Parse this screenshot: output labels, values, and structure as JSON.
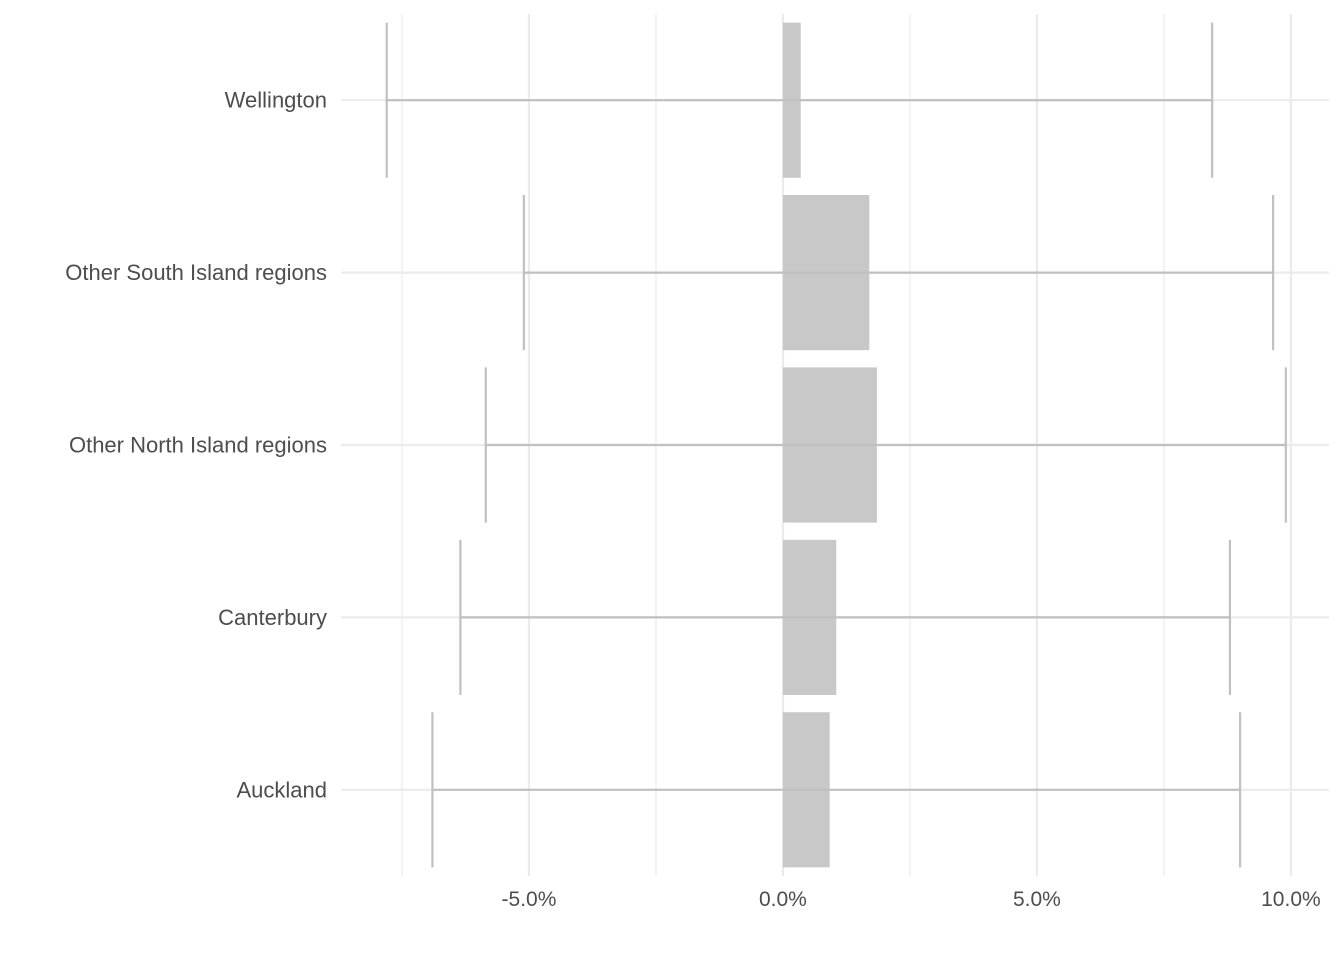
{
  "chart_data": {
    "type": "bar",
    "orientation": "horizontal",
    "categories": [
      "Wellington",
      "Other South Island regions",
      "Other North Island regions",
      "Canterbury",
      "Auckland"
    ],
    "values": [
      0.35,
      1.7,
      1.85,
      1.05,
      0.92
    ],
    "error_low": [
      -7.8,
      -5.1,
      -5.85,
      -6.35,
      -6.9
    ],
    "error_high": [
      8.45,
      9.65,
      9.9,
      8.8,
      9.0
    ],
    "value_format": "percent",
    "xlim": [
      -8.7,
      10.75
    ],
    "x_ticks": [
      -5,
      0,
      5,
      10
    ],
    "x_tick_labels": [
      "-5.0%",
      "0.0%",
      "5.0%",
      "10.0%"
    ],
    "x_minor_ticks": [
      -7.5,
      -2.5,
      2.5,
      7.5
    ],
    "grid": true,
    "legend": "none",
    "title": "",
    "xlabel": "",
    "ylabel": "",
    "colors": {
      "bar": "#c8c8c8",
      "errorbar": "#c0c0c0",
      "grid_major": "#ebebeb",
      "grid_minor": "#f4f4f4",
      "text": "#4d4d4d"
    }
  }
}
